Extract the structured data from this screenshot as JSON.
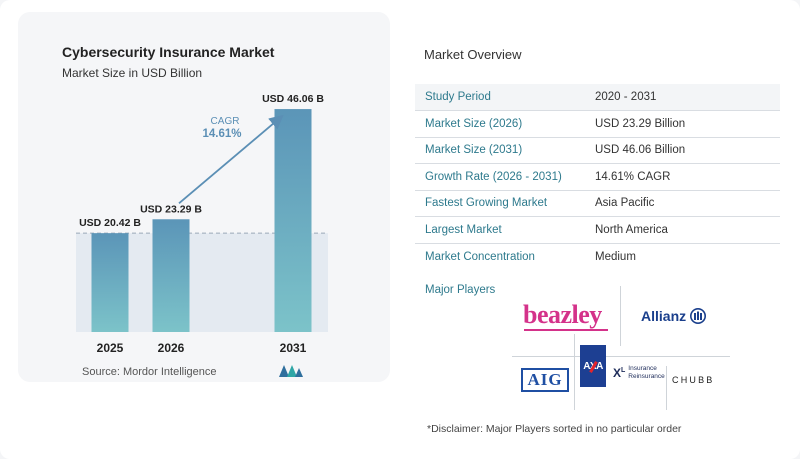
{
  "chart_data": {
    "type": "bar",
    "title": "Cybersecurity Insurance Market",
    "subtitle": "Market Size in USD Billion",
    "categories": [
      "2025",
      "2026",
      "2031"
    ],
    "values": [
      20.42,
      23.29,
      46.06
    ],
    "value_labels": [
      "USD 20.42 B",
      "USD 23.29 B",
      "USD 46.06 B"
    ],
    "cagr_label": "CAGR",
    "cagr_value": "14.61%",
    "xlabel": "",
    "ylabel": "",
    "ylim": [
      0,
      50
    ],
    "grid": false,
    "colors": {
      "bar_top": "#5b95b8",
      "bar_bottom": "#7cc3c9",
      "arrow": "#5b8fb5",
      "baseline_band": "#dde6ee"
    }
  },
  "source": "Source:  Mordor Intelligence",
  "overview": {
    "title": "Market Overview",
    "rows": [
      {
        "label": "Study Period",
        "value": "2020 - 2031"
      },
      {
        "label": "Market Size (2026)",
        "value": "USD 23.29 Billion"
      },
      {
        "label": "Market Size (2031)",
        "value": "USD 46.06 Billion"
      },
      {
        "label": "Growth Rate (2026 - 2031)",
        "value": "14.61% CAGR"
      },
      {
        "label": "Fastest Growing Market",
        "value": "Asia Pacific"
      },
      {
        "label": "Largest Market",
        "value": "North America"
      },
      {
        "label": "Market Concentration",
        "value": "Medium"
      }
    ]
  },
  "players": {
    "label": "Major Players",
    "logos": {
      "beazley": "beazley",
      "allianz": "Allianz",
      "aig": "AIG",
      "axa": "AXA",
      "xl_line1": "Insurance",
      "xl_line2": "Reinsurance",
      "chubb": "CHUBB"
    }
  },
  "disclaimer": "*Disclaimer: Major Players sorted in no particular order"
}
